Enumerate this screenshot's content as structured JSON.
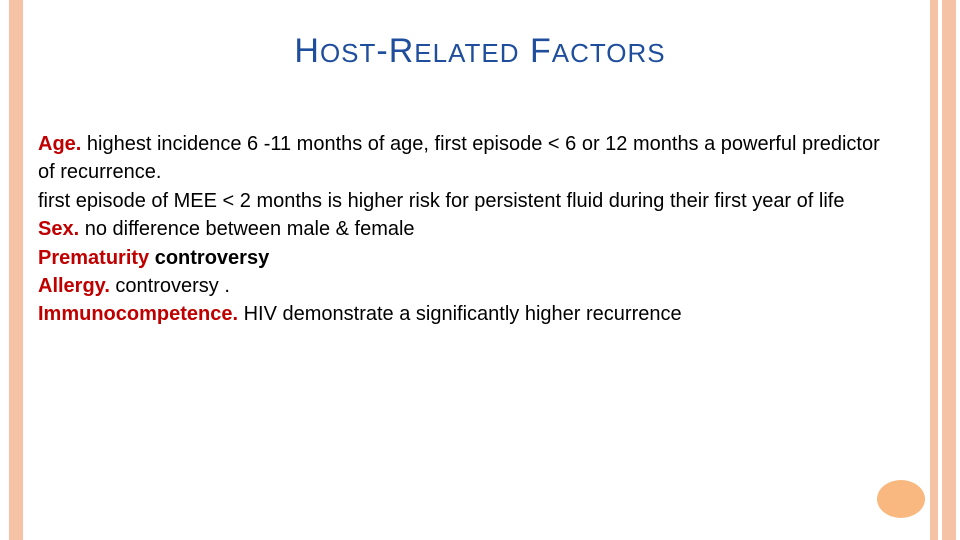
{
  "colors": {
    "stripe": "#f6c2a5",
    "title": "#1f4e9c",
    "label": "#c00000",
    "text": "#000000",
    "deco": "#f9b87f",
    "bg": "#ffffff"
  },
  "title": {
    "parts": [
      "H",
      "OST",
      "-R",
      "ELATED",
      " F",
      "ACTORS"
    ],
    "cap_fontsize": 34,
    "small_fontsize": 26,
    "letter_spacing": 1
  },
  "items": [
    {
      "label": "Age.",
      "text": " highest incidence  6 -11 months of age,  first episode < 6 or 12 months  a powerful predictor of recurrence."
    },
    {
      "label": "",
      "text": "first episode of MEE < 2 months is higher risk for persistent fluid during their first year of life"
    },
    {
      "label": "Sex.",
      "text": " no difference between male & female"
    },
    {
      "label": "Prematurity",
      "controversy": "controversy"
    },
    {
      "label": " Allergy.",
      "text": " controversy ."
    },
    {
      "label": "Immunocompetence.",
      "text": " HIV demonstrate a significantly higher recurrence"
    }
  ],
  "body_fontsize": 20,
  "line_height": 1.42
}
